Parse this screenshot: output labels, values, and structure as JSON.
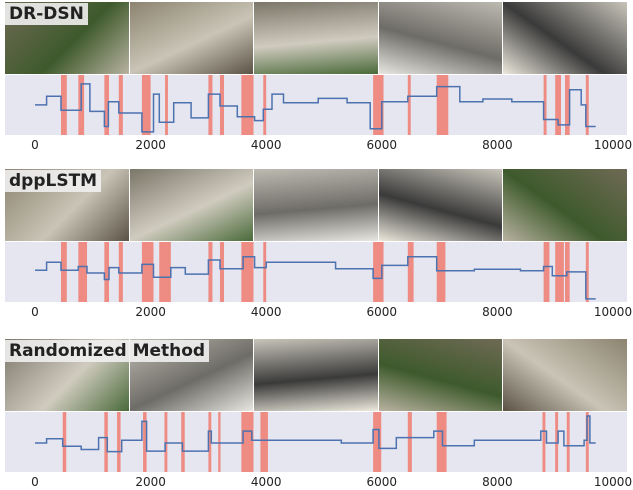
{
  "x_ticks": [
    "0",
    "2000",
    "4000",
    "6000",
    "8000",
    "10000"
  ],
  "x_tick_values": [
    0,
    2000,
    4000,
    6000,
    8000,
    10000
  ],
  "colors": {
    "background": "#e6e6f0",
    "line": "#4c72b0",
    "highlight": "#ee8176"
  },
  "panels": [
    {
      "label": "DR-DSN",
      "frames": [
        "kitchen-counter-frame",
        "chopping-board-frame",
        "knife-frame",
        "stove-pot-frame",
        "man-talking-frame"
      ],
      "highlights": [
        [
          450,
          550
        ],
        [
          750,
          850
        ],
        [
          1200,
          1280
        ],
        [
          1450,
          1520
        ],
        [
          1850,
          2000
        ],
        [
          2250,
          2300
        ],
        [
          3000,
          3070
        ],
        [
          3200,
          3270
        ],
        [
          3570,
          3780
        ],
        [
          3950,
          4000
        ],
        [
          5850,
          6030
        ],
        [
          6450,
          6500
        ],
        [
          6950,
          7150
        ],
        [
          8800,
          8850
        ],
        [
          9000,
          9100
        ],
        [
          9170,
          9250
        ],
        [
          9530,
          9580
        ]
      ],
      "line": [
        [
          0,
          0.52
        ],
        [
          200,
          0.52
        ],
        [
          200,
          0.68
        ],
        [
          450,
          0.68
        ],
        [
          450,
          0.42
        ],
        [
          800,
          0.42
        ],
        [
          800,
          0.91
        ],
        [
          950,
          0.91
        ],
        [
          950,
          0.4
        ],
        [
          1200,
          0.4
        ],
        [
          1200,
          0.12
        ],
        [
          1270,
          0.12
        ],
        [
          1270,
          0.58
        ],
        [
          1450,
          0.58
        ],
        [
          1450,
          0.37
        ],
        [
          1850,
          0.37
        ],
        [
          1850,
          0.02
        ],
        [
          2050,
          0.02
        ],
        [
          2050,
          0.72
        ],
        [
          2150,
          0.72
        ],
        [
          2150,
          0.2
        ],
        [
          2400,
          0.2
        ],
        [
          2400,
          0.56
        ],
        [
          2700,
          0.56
        ],
        [
          2700,
          0.28
        ],
        [
          3000,
          0.28
        ],
        [
          3000,
          0.72
        ],
        [
          3200,
          0.72
        ],
        [
          3200,
          0.5
        ],
        [
          3500,
          0.5
        ],
        [
          3500,
          0.3
        ],
        [
          3800,
          0.3
        ],
        [
          3800,
          0.23
        ],
        [
          3950,
          0.23
        ],
        [
          3950,
          0.44
        ],
        [
          4100,
          0.44
        ],
        [
          4100,
          0.72
        ],
        [
          4300,
          0.72
        ],
        [
          4300,
          0.56
        ],
        [
          4900,
          0.56
        ],
        [
          4900,
          0.64
        ],
        [
          5400,
          0.64
        ],
        [
          5400,
          0.56
        ],
        [
          5800,
          0.56
        ],
        [
          5800,
          0.08
        ],
        [
          6000,
          0.08
        ],
        [
          6000,
          0.58
        ],
        [
          6450,
          0.58
        ],
        [
          6450,
          0.68
        ],
        [
          6950,
          0.68
        ],
        [
          6950,
          0.86
        ],
        [
          7350,
          0.86
        ],
        [
          7350,
          0.58
        ],
        [
          7750,
          0.58
        ],
        [
          7750,
          0.63
        ],
        [
          8250,
          0.63
        ],
        [
          8250,
          0.58
        ],
        [
          8800,
          0.58
        ],
        [
          8800,
          0.25
        ],
        [
          9050,
          0.25
        ],
        [
          9050,
          0.15
        ],
        [
          9250,
          0.15
        ],
        [
          9250,
          0.8
        ],
        [
          9450,
          0.8
        ],
        [
          9450,
          0.52
        ],
        [
          9530,
          0.52
        ],
        [
          9530,
          0.12
        ],
        [
          9700,
          0.12
        ]
      ]
    },
    {
      "label": "dppLSTM",
      "frames": [
        "green-pepper-frame",
        "onion-peeling-frame",
        "pepper-cutting-frame",
        "man-leaning-frame",
        "man-talking-frame"
      ],
      "highlights": [
        [
          450,
          550
        ],
        [
          750,
          900
        ],
        [
          1200,
          1280
        ],
        [
          1450,
          1520
        ],
        [
          1850,
          2050
        ],
        [
          2150,
          2350
        ],
        [
          3000,
          3070
        ],
        [
          3200,
          3270
        ],
        [
          3570,
          3780
        ],
        [
          3950,
          4000
        ],
        [
          5850,
          6030
        ],
        [
          6450,
          6550
        ],
        [
          6950,
          7100
        ],
        [
          8800,
          8900
        ],
        [
          9000,
          9150
        ],
        [
          9170,
          9250
        ],
        [
          9530,
          9580
        ]
      ],
      "line": [
        [
          0,
          0.55
        ],
        [
          200,
          0.55
        ],
        [
          200,
          0.7
        ],
        [
          450,
          0.7
        ],
        [
          450,
          0.55
        ],
        [
          750,
          0.55
        ],
        [
          750,
          0.62
        ],
        [
          900,
          0.62
        ],
        [
          900,
          0.5
        ],
        [
          1200,
          0.5
        ],
        [
          1200,
          0.38
        ],
        [
          1280,
          0.38
        ],
        [
          1280,
          0.6
        ],
        [
          1450,
          0.6
        ],
        [
          1450,
          0.5
        ],
        [
          1850,
          0.5
        ],
        [
          1850,
          0.66
        ],
        [
          2050,
          0.66
        ],
        [
          2050,
          0.42
        ],
        [
          2350,
          0.42
        ],
        [
          2350,
          0.6
        ],
        [
          2600,
          0.6
        ],
        [
          2600,
          0.48
        ],
        [
          3000,
          0.48
        ],
        [
          3000,
          0.74
        ],
        [
          3200,
          0.74
        ],
        [
          3200,
          0.58
        ],
        [
          3600,
          0.58
        ],
        [
          3600,
          0.8
        ],
        [
          3800,
          0.8
        ],
        [
          3800,
          0.6
        ],
        [
          4000,
          0.6
        ],
        [
          4000,
          0.7
        ],
        [
          5200,
          0.7
        ],
        [
          5200,
          0.58
        ],
        [
          5850,
          0.58
        ],
        [
          5850,
          0.4
        ],
        [
          6000,
          0.4
        ],
        [
          6000,
          0.64
        ],
        [
          6450,
          0.64
        ],
        [
          6450,
          0.8
        ],
        [
          6950,
          0.8
        ],
        [
          6950,
          0.54
        ],
        [
          7600,
          0.54
        ],
        [
          7600,
          0.57
        ],
        [
          8400,
          0.57
        ],
        [
          8400,
          0.54
        ],
        [
          8800,
          0.54
        ],
        [
          8800,
          0.62
        ],
        [
          8950,
          0.62
        ],
        [
          8950,
          0.45
        ],
        [
          9200,
          0.45
        ],
        [
          9200,
          0.52
        ],
        [
          9530,
          0.52
        ],
        [
          9530,
          0.02
        ],
        [
          9700,
          0.02
        ]
      ]
    },
    {
      "label": "Randomized Method",
      "frames": [
        "blurred-motion-frame",
        "potatoes-frame",
        "green-pepper-frame",
        "pot-stove-frame",
        "man-talking-frame"
      ],
      "highlights": [
        [
          480,
          540
        ],
        [
          1200,
          1260
        ],
        [
          1420,
          1480
        ],
        [
          1870,
          1930
        ],
        [
          2240,
          2290
        ],
        [
          2530,
          2590
        ],
        [
          3000,
          3050
        ],
        [
          3170,
          3210
        ],
        [
          3570,
          3780
        ],
        [
          3900,
          4030
        ],
        [
          5850,
          5990
        ],
        [
          6450,
          6520
        ],
        [
          6950,
          7120
        ],
        [
          8780,
          8830
        ],
        [
          9000,
          9050
        ],
        [
          9200,
          9250
        ],
        [
          9530,
          9580
        ]
      ],
      "line": [
        [
          0,
          0.5
        ],
        [
          200,
          0.5
        ],
        [
          200,
          0.58
        ],
        [
          480,
          0.58
        ],
        [
          480,
          0.44
        ],
        [
          800,
          0.44
        ],
        [
          800,
          0.38
        ],
        [
          1100,
          0.38
        ],
        [
          1100,
          0.6
        ],
        [
          1250,
          0.6
        ],
        [
          1250,
          0.34
        ],
        [
          1500,
          0.34
        ],
        [
          1500,
          0.55
        ],
        [
          1850,
          0.55
        ],
        [
          1850,
          0.9
        ],
        [
          1930,
          0.9
        ],
        [
          1930,
          0.35
        ],
        [
          2250,
          0.35
        ],
        [
          2250,
          0.5
        ],
        [
          2550,
          0.5
        ],
        [
          2550,
          0.35
        ],
        [
          3000,
          0.35
        ],
        [
          3000,
          0.72
        ],
        [
          3050,
          0.72
        ],
        [
          3050,
          0.5
        ],
        [
          3600,
          0.5
        ],
        [
          3600,
          0.72
        ],
        [
          3750,
          0.72
        ],
        [
          3750,
          0.55
        ],
        [
          5300,
          0.55
        ],
        [
          5300,
          0.5
        ],
        [
          5850,
          0.5
        ],
        [
          5850,
          0.75
        ],
        [
          5950,
          0.75
        ],
        [
          5950,
          0.4
        ],
        [
          6250,
          0.4
        ],
        [
          6250,
          0.6
        ],
        [
          6900,
          0.6
        ],
        [
          6900,
          0.72
        ],
        [
          7050,
          0.72
        ],
        [
          7050,
          0.45
        ],
        [
          7600,
          0.45
        ],
        [
          7600,
          0.55
        ],
        [
          8750,
          0.55
        ],
        [
          8750,
          0.72
        ],
        [
          8850,
          0.72
        ],
        [
          8850,
          0.5
        ],
        [
          9050,
          0.5
        ],
        [
          9050,
          0.72
        ],
        [
          9150,
          0.72
        ],
        [
          9150,
          0.45
        ],
        [
          9500,
          0.45
        ],
        [
          9500,
          0.55
        ],
        [
          9550,
          0.55
        ],
        [
          9550,
          1.0
        ],
        [
          9600,
          1.0
        ],
        [
          9600,
          0.5
        ],
        [
          9700,
          0.5
        ]
      ]
    }
  ]
}
